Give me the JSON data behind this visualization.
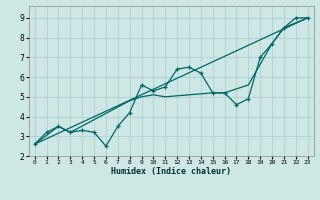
{
  "xlabel": "Humidex (Indice chaleur)",
  "bg_color": "#cde8e4",
  "line_color": "#006666",
  "grid_color": "#aacccc",
  "xlim": [
    -0.5,
    23.5
  ],
  "ylim": [
    2.0,
    9.6
  ],
  "xticks": [
    0,
    1,
    2,
    3,
    4,
    5,
    6,
    7,
    8,
    9,
    10,
    11,
    12,
    13,
    14,
    15,
    16,
    17,
    18,
    19,
    20,
    21,
    22,
    23
  ],
  "yticks": [
    2,
    3,
    4,
    5,
    6,
    7,
    8,
    9
  ],
  "series_zigzag": [
    [
      0,
      2.6
    ],
    [
      1,
      3.2
    ],
    [
      2,
      3.5
    ],
    [
      3,
      3.2
    ],
    [
      4,
      3.3
    ],
    [
      5,
      3.2
    ],
    [
      6,
      2.5
    ],
    [
      7,
      3.5
    ],
    [
      8,
      4.2
    ],
    [
      9,
      5.6
    ],
    [
      10,
      5.3
    ],
    [
      11,
      5.5
    ],
    [
      12,
      6.4
    ],
    [
      13,
      6.5
    ],
    [
      14,
      6.2
    ],
    [
      15,
      5.2
    ],
    [
      16,
      5.2
    ],
    [
      17,
      4.6
    ],
    [
      18,
      4.9
    ],
    [
      19,
      7.0
    ],
    [
      20,
      7.7
    ],
    [
      21,
      8.5
    ],
    [
      22,
      9.0
    ],
    [
      23,
      9.0
    ]
  ],
  "straight_line": [
    [
      0,
      2.6
    ],
    [
      23,
      9.0
    ]
  ],
  "curve2": [
    [
      0,
      2.6
    ],
    [
      2,
      3.5
    ],
    [
      3,
      3.2
    ],
    [
      8,
      4.8
    ],
    [
      9,
      5.0
    ],
    [
      10,
      5.1
    ],
    [
      11,
      5.0
    ],
    [
      15,
      5.2
    ],
    [
      16,
      5.2
    ],
    [
      18,
      5.6
    ],
    [
      20,
      7.7
    ],
    [
      21,
      8.5
    ],
    [
      23,
      9.0
    ]
  ]
}
